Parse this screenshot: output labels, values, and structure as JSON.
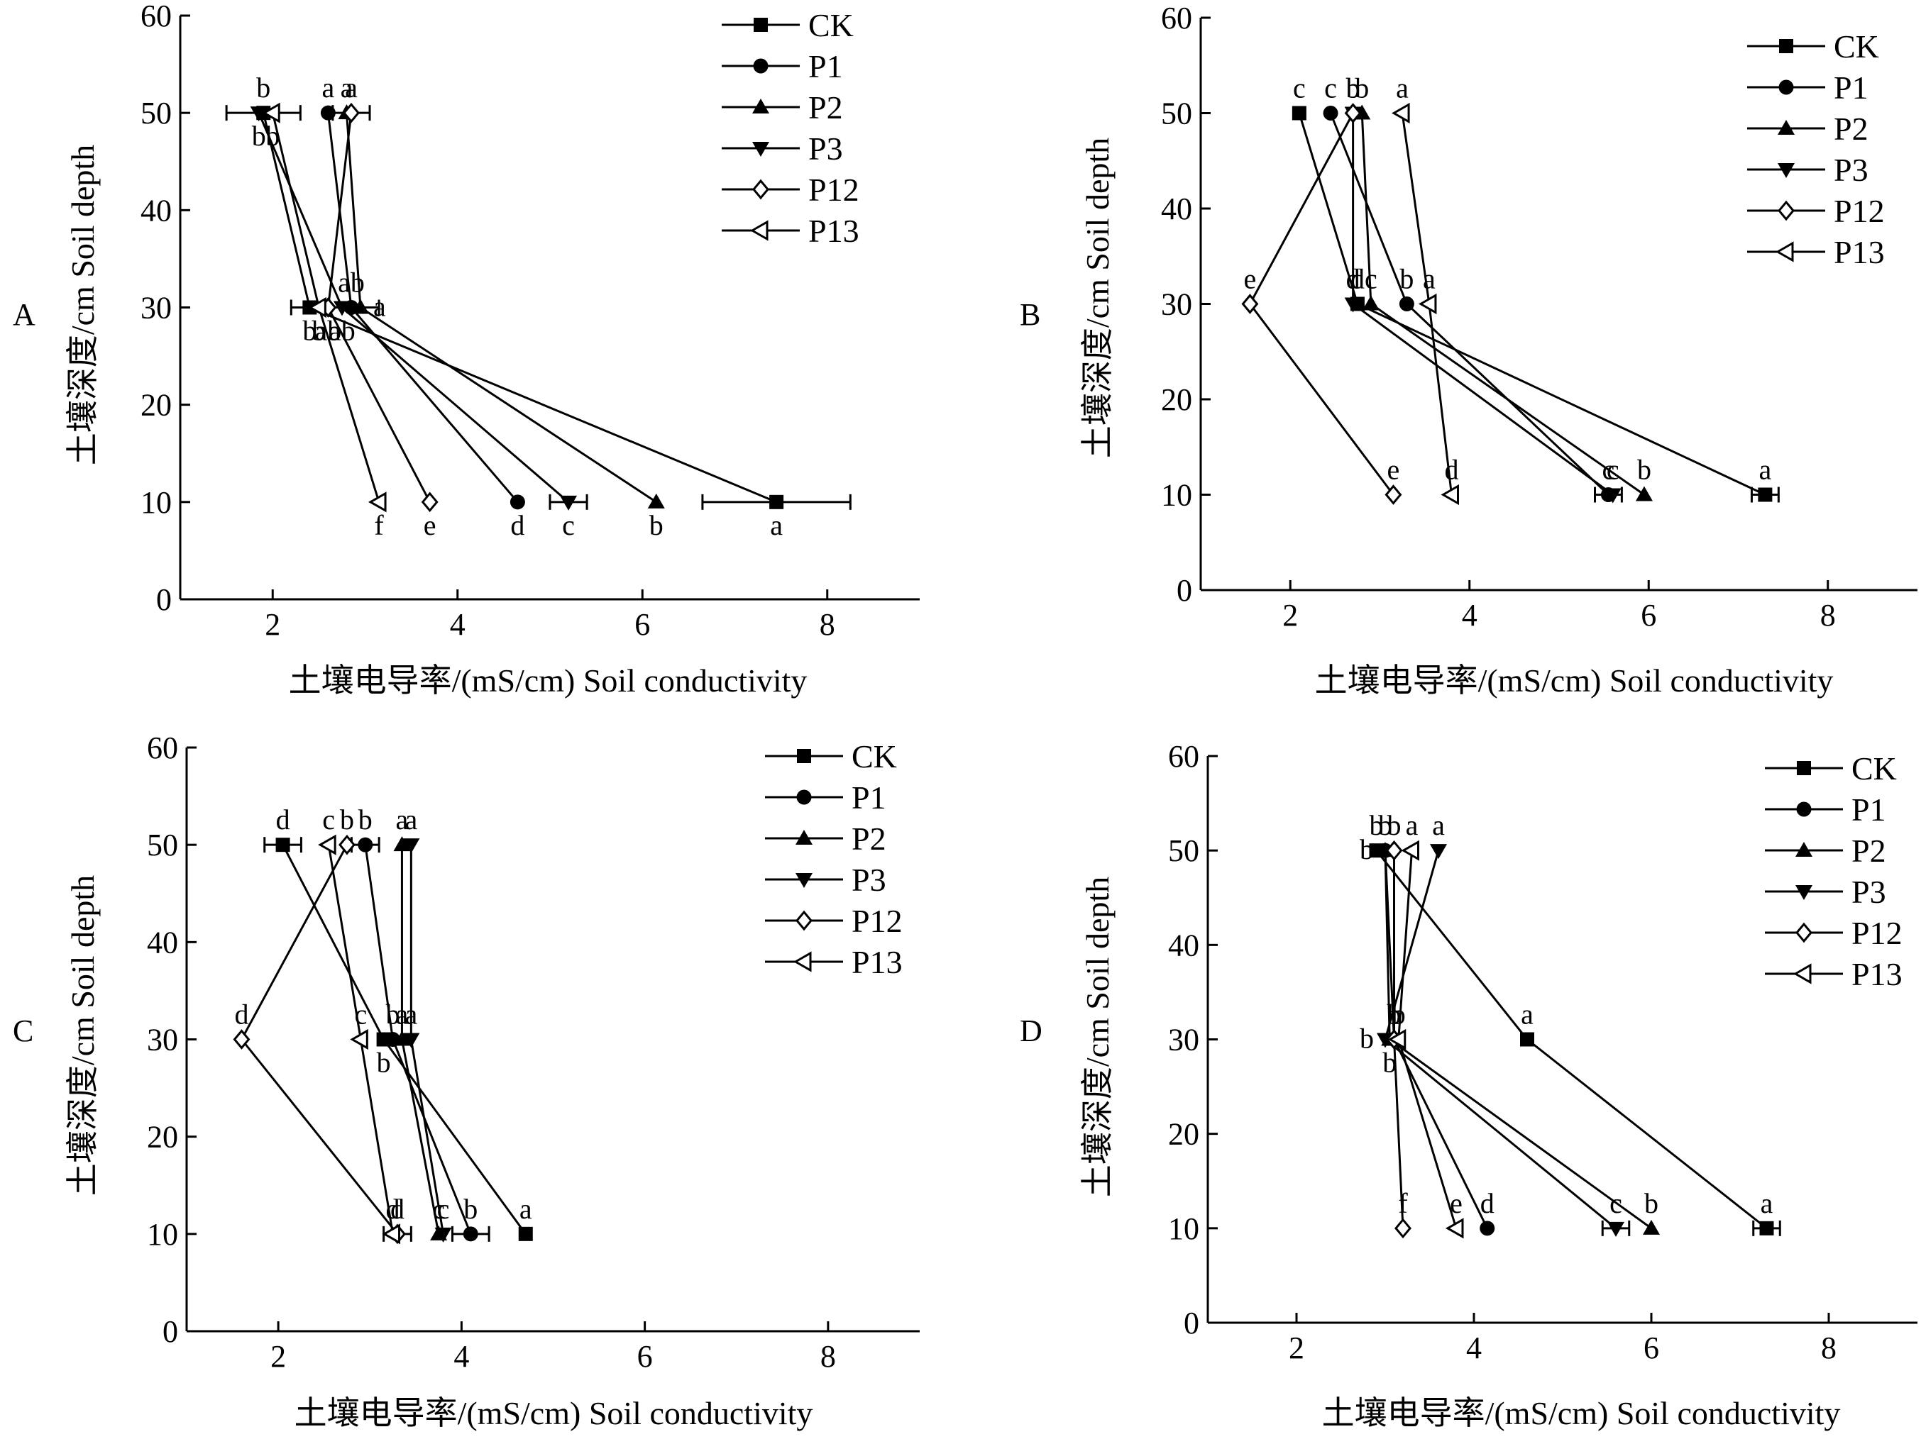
{
  "chart_data": [
    {
      "panel": "A",
      "type": "line",
      "xlabel": "土壤电导率/(mS/cm)  Soil conductivity",
      "ylabel": "土壤深度/cm  Soil depth",
      "xlim": [
        1,
        9
      ],
      "ylim": [
        0,
        60
      ],
      "xticks": [
        2,
        4,
        6,
        8
      ],
      "yticks": [
        0,
        10,
        20,
        30,
        40,
        50,
        60
      ],
      "legend": "top-right",
      "series": [
        {
          "name": "CK",
          "marker": "square",
          "points": [
            {
              "y": 50,
              "x": 1.9,
              "err": 0.4,
              "sig": "b",
              "sig_pos": "above"
            },
            {
              "y": 30,
              "x": 2.4,
              "err": 0.2,
              "sig": "b",
              "sig_pos": "below"
            },
            {
              "y": 10,
              "x": 7.45,
              "err": 0.8,
              "sig": "a",
              "sig_pos": "below"
            }
          ]
        },
        {
          "name": "P1",
          "marker": "circle",
          "points": [
            {
              "y": 50,
              "x": 2.6,
              "sig": "a",
              "sig_pos": "above"
            },
            {
              "y": 30,
              "x": 2.85,
              "err": 0.3,
              "sig": "ab",
              "sig_pos": "above"
            },
            {
              "y": 10,
              "x": 4.65,
              "sig": "d",
              "sig_pos": "below"
            }
          ]
        },
        {
          "name": "P2",
          "marker": "triangle",
          "points": [
            {
              "y": 50,
              "x": 2.8,
              "sig": "a",
              "sig_pos": "above"
            },
            {
              "y": 30,
              "x": 2.95,
              "sig": "a",
              "sig_pos": "right"
            },
            {
              "y": 10,
              "x": 6.15,
              "sig": "b",
              "sig_pos": "below"
            }
          ]
        },
        {
          "name": "P3",
          "marker": "tri-down",
          "points": [
            {
              "y": 50,
              "x": 1.85,
              "sig": "b",
              "sig_pos": "below"
            },
            {
              "y": 30,
              "x": 2.75,
              "sig": "ab",
              "sig_pos": "below"
            },
            {
              "y": 10,
              "x": 5.2,
              "err": 0.2,
              "sig": "c",
              "sig_pos": "below"
            }
          ]
        },
        {
          "name": "P12",
          "marker": "diamond",
          "points": [
            {
              "y": 50,
              "x": 2.85,
              "err": 0.2,
              "sig": "a",
              "sig_pos": "above"
            },
            {
              "y": 30,
              "x": 2.6,
              "sig": "ab",
              "sig_pos": "below"
            },
            {
              "y": 10,
              "x": 3.7,
              "sig": "e",
              "sig_pos": "below"
            }
          ]
        },
        {
          "name": "P13",
          "marker": "tri-left",
          "points": [
            {
              "y": 50,
              "x": 2.0,
              "sig": "b",
              "sig_pos": "below"
            },
            {
              "y": 30,
              "x": 2.5,
              "sig": "b",
              "sig_pos": "below"
            },
            {
              "y": 10,
              "x": 3.15,
              "sig": "f",
              "sig_pos": "below"
            }
          ]
        }
      ]
    },
    {
      "panel": "B",
      "type": "line",
      "xlabel": "土壤电导率/(mS/cm)  Soil conductivity",
      "ylabel": "土壤深度/cm  Soil depth",
      "xlim": [
        1,
        9
      ],
      "ylim": [
        0,
        60
      ],
      "xticks": [
        2,
        4,
        6,
        8
      ],
      "yticks": [
        0,
        10,
        20,
        30,
        40,
        50,
        60
      ],
      "legend": "top-right",
      "series": [
        {
          "name": "CK",
          "marker": "square",
          "points": [
            {
              "y": 50,
              "x": 2.1,
              "sig": "c",
              "sig_pos": "above"
            },
            {
              "y": 30,
              "x": 2.75,
              "sig": "d",
              "sig_pos": "above"
            },
            {
              "y": 10,
              "x": 7.3,
              "err": 0.15,
              "sig": "a",
              "sig_pos": "above"
            }
          ]
        },
        {
          "name": "P1",
          "marker": "circle",
          "points": [
            {
              "y": 50,
              "x": 2.45,
              "sig": "c",
              "sig_pos": "above"
            },
            {
              "y": 30,
              "x": 3.3,
              "sig": "b",
              "sig_pos": "above"
            },
            {
              "y": 10,
              "x": 5.55,
              "err": 0.15,
              "sig": "c",
              "sig_pos": "above"
            }
          ]
        },
        {
          "name": "P2",
          "marker": "triangle",
          "points": [
            {
              "y": 50,
              "x": 2.8,
              "sig": "b",
              "sig_pos": "above"
            },
            {
              "y": 30,
              "x": 2.9,
              "sig": "c",
              "sig_pos": "above"
            },
            {
              "y": 10,
              "x": 5.95,
              "sig": "b",
              "sig_pos": "above"
            }
          ]
        },
        {
          "name": "P3",
          "marker": "tri-down",
          "points": [
            {
              "y": 50,
              "x": 2.7,
              "sig": "b",
              "sig_pos": "above"
            },
            {
              "y": 30,
              "x": 2.7,
              "sig": "d",
              "sig_pos": "above"
            },
            {
              "y": 10,
              "x": 5.6,
              "sig": "c",
              "sig_pos": "above"
            }
          ]
        },
        {
          "name": "P12",
          "marker": "diamond",
          "points": [
            {
              "y": 50,
              "x": 2.7,
              "sig": "b",
              "sig_pos": "above"
            },
            {
              "y": 30,
              "x": 1.55,
              "sig": "e",
              "sig_pos": "above"
            },
            {
              "y": 10,
              "x": 3.15,
              "sig": "e",
              "sig_pos": "above"
            }
          ]
        },
        {
          "name": "P13",
          "marker": "tri-left",
          "points": [
            {
              "y": 50,
              "x": 3.25,
              "sig": "a",
              "sig_pos": "above"
            },
            {
              "y": 30,
              "x": 3.55,
              "sig": "a",
              "sig_pos": "above"
            },
            {
              "y": 10,
              "x": 3.8,
              "sig": "d",
              "sig_pos": "above"
            }
          ]
        }
      ]
    },
    {
      "panel": "C",
      "type": "line",
      "xlabel": "土壤电导率/(mS/cm)  Soil conductivity",
      "ylabel": "土壤深度/cm  Soil depth",
      "xlim": [
        1,
        9
      ],
      "ylim": [
        0,
        60
      ],
      "xticks": [
        2,
        4,
        6,
        8
      ],
      "yticks": [
        0,
        10,
        20,
        30,
        40,
        50,
        60
      ],
      "legend": "top-right",
      "series": [
        {
          "name": "CK",
          "marker": "square",
          "points": [
            {
              "y": 50,
              "x": 2.05,
              "err": 0.2,
              "sig": "d",
              "sig_pos": "above"
            },
            {
              "y": 30,
              "x": 3.15,
              "sig": "b",
              "sig_pos": "below"
            },
            {
              "y": 10,
              "x": 4.7,
              "sig": "a",
              "sig_pos": "above"
            }
          ]
        },
        {
          "name": "P1",
          "marker": "circle",
          "points": [
            {
              "y": 50,
              "x": 2.95,
              "err": 0.15,
              "sig": "b",
              "sig_pos": "above"
            },
            {
              "y": 30,
              "x": 3.25,
              "sig": "b",
              "sig_pos": "above"
            },
            {
              "y": 10,
              "x": 4.1,
              "err": 0.2,
              "sig": "b",
              "sig_pos": "above"
            }
          ]
        },
        {
          "name": "P2",
          "marker": "triangle",
          "points": [
            {
              "y": 50,
              "x": 3.35,
              "sig": "a",
              "sig_pos": "above"
            },
            {
              "y": 30,
              "x": 3.35,
              "sig": "a",
              "sig_pos": "above"
            },
            {
              "y": 10,
              "x": 3.75,
              "sig": "c",
              "sig_pos": "above"
            }
          ]
        },
        {
          "name": "P3",
          "marker": "tri-down",
          "points": [
            {
              "y": 50,
              "x": 3.45,
              "sig": "a",
              "sig_pos": "above"
            },
            {
              "y": 30,
              "x": 3.45,
              "sig": "a",
              "sig_pos": "above"
            },
            {
              "y": 10,
              "x": 3.8,
              "sig": "c",
              "sig_pos": "above"
            }
          ]
        },
        {
          "name": "P12",
          "marker": "diamond",
          "points": [
            {
              "y": 50,
              "x": 2.75,
              "sig": "b",
              "sig_pos": "above"
            },
            {
              "y": 30,
              "x": 1.6,
              "sig": "d",
              "sig_pos": "above"
            },
            {
              "y": 10,
              "x": 3.3,
              "err": 0.15,
              "sig": "d",
              "sig_pos": "above"
            }
          ]
        },
        {
          "name": "P13",
          "marker": "tri-left",
          "points": [
            {
              "y": 50,
              "x": 2.55,
              "sig": "c",
              "sig_pos": "above"
            },
            {
              "y": 30,
              "x": 2.9,
              "sig": "c",
              "sig_pos": "above"
            },
            {
              "y": 10,
              "x": 3.25,
              "sig": "d",
              "sig_pos": "above"
            }
          ]
        }
      ]
    },
    {
      "panel": "D",
      "type": "line",
      "xlabel": "土壤电导率/(mS/cm)  Soil conductivity",
      "ylabel": "土壤深度/cm  Soil depth",
      "xlim": [
        1,
        9
      ],
      "ylim": [
        0,
        60
      ],
      "xticks": [
        2,
        4,
        6,
        8
      ],
      "yticks": [
        0,
        10,
        20,
        30,
        40,
        50,
        60
      ],
      "legend": "top-right",
      "series": [
        {
          "name": "CK",
          "marker": "square",
          "points": [
            {
              "y": 50,
              "x": 2.9,
              "sig": "b",
              "sig_pos": "above"
            },
            {
              "y": 30,
              "x": 4.6,
              "sig": "a",
              "sig_pos": "above"
            },
            {
              "y": 10,
              "x": 7.3,
              "err": 0.15,
              "sig": "a",
              "sig_pos": "above"
            }
          ]
        },
        {
          "name": "P1",
          "marker": "circle",
          "points": [
            {
              "y": 50,
              "x": 3.0,
              "sig": "b",
              "sig_pos": "above"
            },
            {
              "y": 30,
              "x": 3.1,
              "sig": "b",
              "sig_pos": "above"
            },
            {
              "y": 10,
              "x": 4.15,
              "sig": "d",
              "sig_pos": "above"
            }
          ]
        },
        {
          "name": "P2",
          "marker": "triangle",
          "points": [
            {
              "y": 50,
              "x": 3.0,
              "sig": "b",
              "sig_pos": "left"
            },
            {
              "y": 30,
              "x": 3.05,
              "sig": "b",
              "sig_pos": "below"
            },
            {
              "y": 10,
              "x": 6.0,
              "sig": "b",
              "sig_pos": "above"
            }
          ]
        },
        {
          "name": "P3",
          "marker": "tri-down",
          "points": [
            {
              "y": 50,
              "x": 3.6,
              "sig": "a",
              "sig_pos": "above"
            },
            {
              "y": 30,
              "x": 3.0,
              "sig": "b",
              "sig_pos": "left"
            },
            {
              "y": 10,
              "x": 5.6,
              "err": 0.15,
              "sig": "c",
              "sig_pos": "above"
            }
          ]
        },
        {
          "name": "P12",
          "marker": "diamond",
          "points": [
            {
              "y": 50,
              "x": 3.1,
              "sig": "b",
              "sig_pos": "above"
            },
            {
              "y": 30,
              "x": 3.1,
              "sig": "b",
              "sig_pos": "above"
            },
            {
              "y": 10,
              "x": 3.2,
              "sig": "f",
              "sig_pos": "above"
            }
          ]
        },
        {
          "name": "P13",
          "marker": "tri-left",
          "points": [
            {
              "y": 50,
              "x": 3.3,
              "sig": "a",
              "sig_pos": "above"
            },
            {
              "y": 30,
              "x": 3.15,
              "sig": "b",
              "sig_pos": "above"
            },
            {
              "y": 10,
              "x": 3.8,
              "sig": "e",
              "sig_pos": "above"
            }
          ]
        }
      ]
    }
  ]
}
